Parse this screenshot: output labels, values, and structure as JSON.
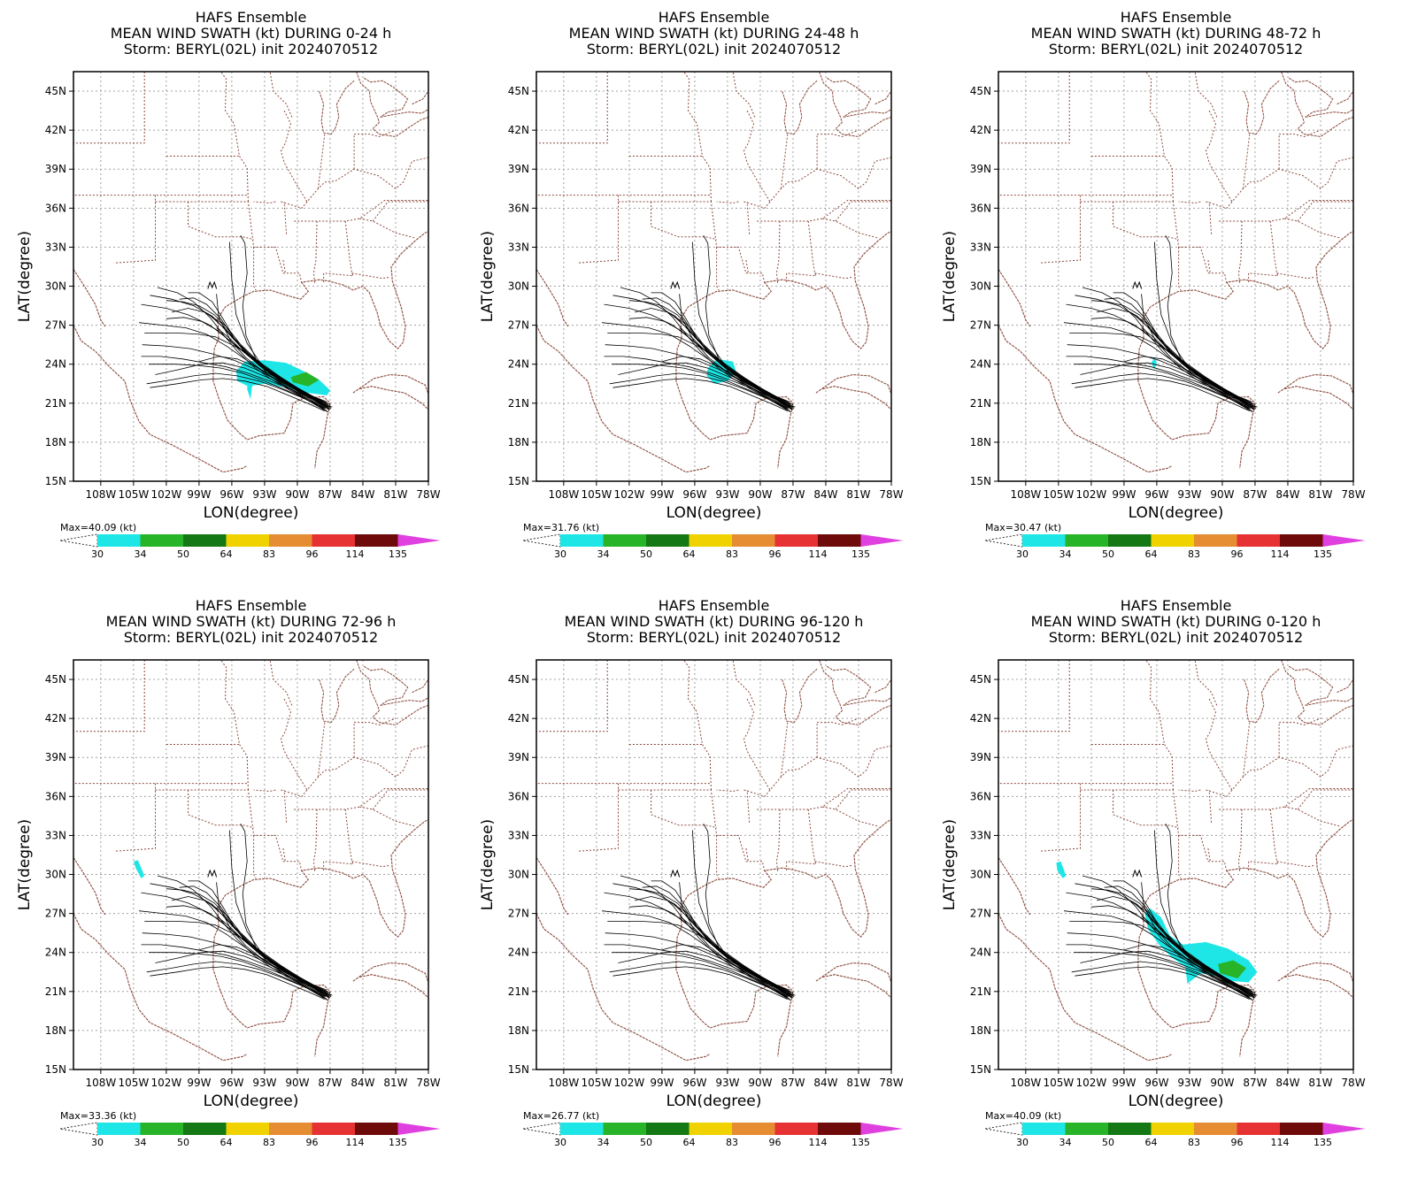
{
  "figure": {
    "panels": [
      {
        "title_lines": [
          "HAFS Ensemble",
          "MEAN WIND SWATH (kt) DURING  0-24 h",
          "Storm: BERYL(02L) init 2024070512"
        ],
        "max_label": "Max=40.09 (kt)",
        "swath": "p1"
      },
      {
        "title_lines": [
          "HAFS Ensemble",
          "MEAN WIND SWATH (kt) DURING 24-48 h",
          "Storm: BERYL(02L) init 2024070512"
        ],
        "max_label": "Max=31.76 (kt)",
        "swath": "p2"
      },
      {
        "title_lines": [
          "HAFS Ensemble",
          "MEAN WIND SWATH (kt) DURING 48-72 h",
          "Storm: BERYL(02L) init 2024070512"
        ],
        "max_label": "Max=30.47 (kt)",
        "swath": "p3"
      },
      {
        "title_lines": [
          "HAFS Ensemble",
          "MEAN WIND SWATH (kt) DURING 72-96 h",
          "Storm: BERYL(02L) init 2024070512"
        ],
        "max_label": "Max=33.36 (kt)",
        "swath": "p4"
      },
      {
        "title_lines": [
          "HAFS Ensemble",
          "MEAN WIND SWATH (kt) DURING 96-120 h",
          "Storm: BERYL(02L) init 2024070512"
        ],
        "max_label": "Max=26.77 (kt)",
        "swath": "p5"
      },
      {
        "title_lines": [
          "HAFS Ensemble",
          "MEAN WIND SWATH (kt) DURING 0-120 h",
          "Storm: BERYL(02L) init 2024070512"
        ],
        "max_label": "Max=40.09 (kt)",
        "swath": "p6"
      }
    ],
    "x_label": "LON(degree)",
    "y_label": "LAT(degree)",
    "lon_ticks": [
      "108W",
      "105W",
      "102W",
      "99W",
      "96W",
      "93W",
      "90W",
      "87W",
      "84W",
      "81W",
      "78W"
    ],
    "lat_ticks": [
      "15N",
      "18N",
      "21N",
      "24N",
      "27N",
      "30N",
      "33N",
      "36N",
      "39N",
      "42N",
      "45N"
    ],
    "colorbar": {
      "labels": [
        "30",
        "34",
        "50",
        "64",
        "83",
        "96",
        "114",
        "135"
      ],
      "colors": [
        "#1ee6e6",
        "#28b428",
        "#147814",
        "#f0d200",
        "#e68c32",
        "#e63232",
        "#6e0a0a",
        "#e040e0"
      ]
    },
    "colors": {
      "track": "#000000",
      "border": "#8b4a3c",
      "grid": "#a0a0a0"
    }
  }
}
